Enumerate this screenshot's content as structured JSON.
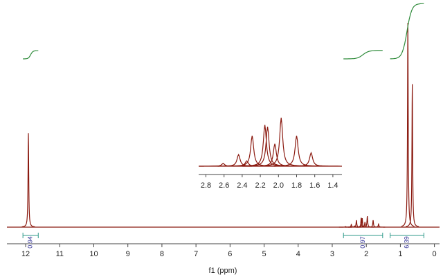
{
  "chart_data": {
    "type": "nmr",
    "xlabel": "f1 (ppm)",
    "xlim": [
      12.55,
      -0.15
    ],
    "xticks": [
      12,
      11,
      10,
      9,
      8,
      7,
      6,
      5,
      4,
      3,
      2,
      1,
      0
    ],
    "peaks": {
      "x": [
        11.92,
        0.78,
        0.65,
        2.61,
        2.44,
        2.35,
        2.29,
        2.15,
        2.12,
        2.04,
        1.97,
        1.8,
        1.64
      ],
      "values": [
        46,
        100,
        70,
        0.3,
        1.3,
        0.6,
        3.4,
        4.6,
        4.4,
        2.5,
        5.4,
        3.4,
        1.5
      ],
      "color": "#8b1a10"
    },
    "integrals": [
      {
        "from": 12.08,
        "to": 11.63,
        "value": 0.94
      },
      {
        "from": 2.67,
        "to": 1.52,
        "value": 0.97
      },
      {
        "from": 1.3,
        "to": 0.31,
        "value": 6.39
      }
    ],
    "inset": {
      "xlim": [
        2.88,
        1.3
      ],
      "xticks": [
        2.8,
        2.6,
        2.4,
        2.2,
        {
          "value": 2,
          "label": "2.0"
        },
        1.8,
        1.6,
        1.4
      ]
    }
  }
}
